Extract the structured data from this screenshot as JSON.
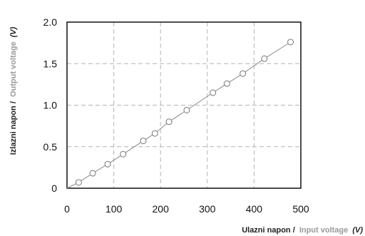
{
  "chart_data": {
    "type": "scatter",
    "x": [
      25,
      55,
      87,
      120,
      163,
      188,
      218,
      256,
      312,
      342,
      376,
      422,
      478
    ],
    "y": [
      0.07,
      0.18,
      0.29,
      0.41,
      0.57,
      0.66,
      0.8,
      0.94,
      1.15,
      1.26,
      1.38,
      1.56,
      1.76
    ],
    "xlim": [
      0,
      500
    ],
    "ylim": [
      0,
      2.0
    ],
    "xticks": [
      "0",
      "100",
      "200",
      "300",
      "400",
      "500"
    ],
    "yticks": [
      "0",
      "0.5",
      "1.0",
      "1.5",
      "2.0"
    ],
    "xlabel": {
      "main": "Ulazni napon /",
      "alt": "Input voltage",
      "unit": "(V)"
    },
    "ylabel": {
      "main": "Izlazni napon /",
      "alt": "Output voltage",
      "unit": "(V)"
    },
    "grid": true,
    "marker": "hollow-circle",
    "colors": {
      "line": "#8a8a8a",
      "marker_stroke": "#777777",
      "grid": "#b3b3b3",
      "frame": "#111111",
      "alt_label": "#9a9a9a"
    }
  }
}
